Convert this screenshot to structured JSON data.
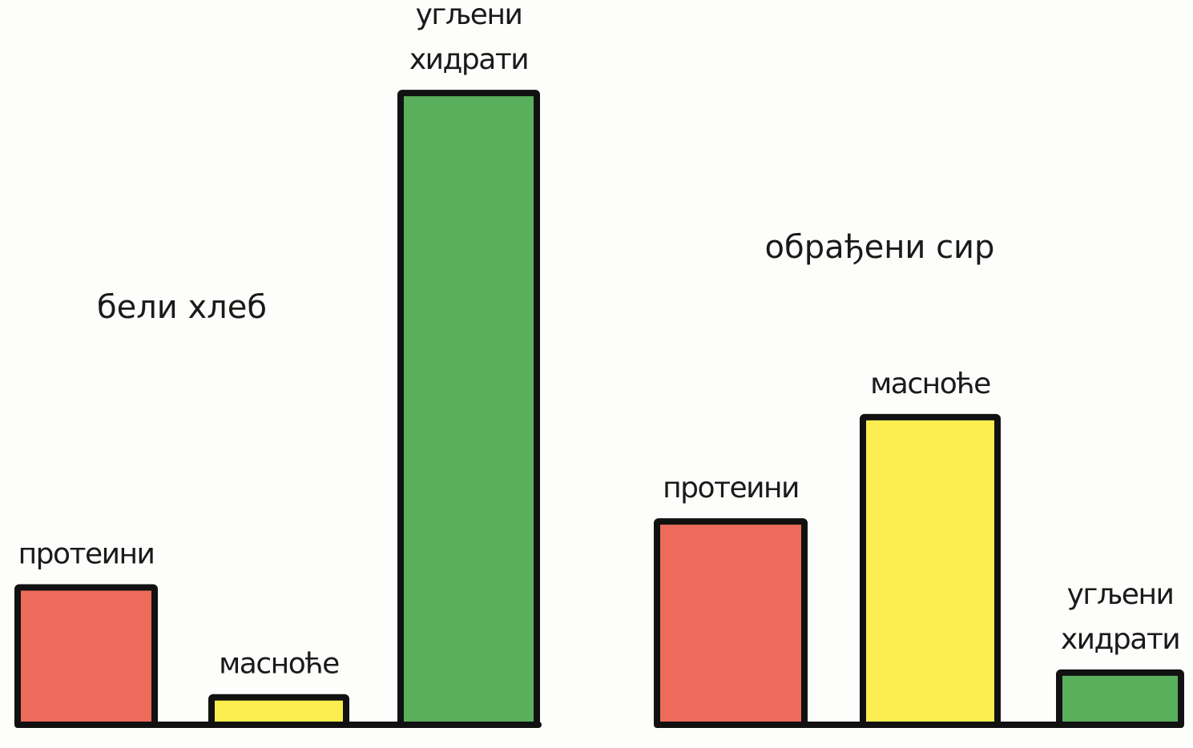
{
  "chart_data": [
    {
      "type": "bar",
      "title": "бели хлеб",
      "categories": [
        "протеини",
        "масноће",
        "угљени хидрати"
      ],
      "values": [
        5,
        1,
        23
      ],
      "colors": [
        "#ec6b5b",
        "#fcee50",
        "#5aaf5c"
      ],
      "ylim": [
        0,
        23
      ],
      "grid": false
    },
    {
      "type": "bar",
      "title": "обрађени сир",
      "categories": [
        "протеини",
        "масноће",
        "угљени хидрати"
      ],
      "values": [
        7.4,
        11.2,
        1.9
      ],
      "colors": [
        "#ec6b5b",
        "#fcee50",
        "#5aaf5c"
      ],
      "ylim": [
        0,
        23
      ],
      "grid": false
    }
  ]
}
